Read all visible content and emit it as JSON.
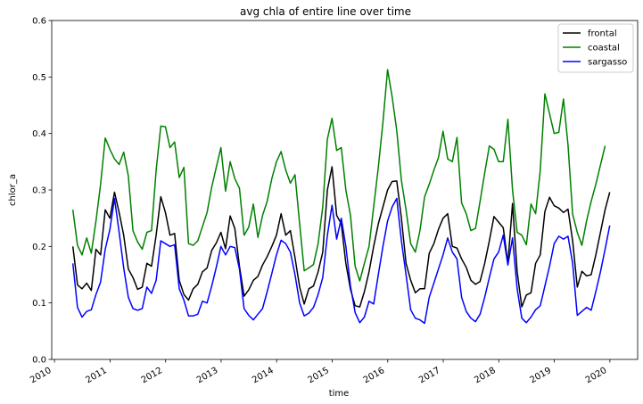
{
  "chart_data": {
    "type": "line",
    "title": "avg chla of entire line over time",
    "xlabel": "time",
    "ylabel": "chlor_a",
    "xlim": [
      2009.95,
      2020.5
    ],
    "ylim": [
      0.0,
      0.6
    ],
    "yticks": [
      0.0,
      0.1,
      0.2,
      0.3,
      0.4,
      0.5,
      0.6
    ],
    "ytick_labels": [
      "0.0",
      "0.1",
      "0.2",
      "0.3",
      "0.4",
      "0.5",
      "0.6"
    ],
    "xticks": [
      2010,
      2011,
      2012,
      2013,
      2014,
      2015,
      2016,
      2017,
      2018,
      2019,
      2020
    ],
    "xtick_labels": [
      "2010",
      "2011",
      "2012",
      "2013",
      "2014",
      "2015",
      "2016",
      "2017",
      "2018",
      "2019",
      "2020"
    ],
    "grid": false,
    "legend_position": "top-right",
    "start_year": 2010.33,
    "step_months": 1,
    "series": [
      {
        "name": "frontal",
        "color": "#000000",
        "values": [
          0.2,
          0.132,
          0.125,
          0.135,
          0.122,
          0.195,
          0.185,
          0.265,
          0.25,
          0.296,
          0.26,
          0.22,
          0.16,
          0.145,
          0.124,
          0.128,
          0.17,
          0.165,
          0.22,
          0.288,
          0.26,
          0.22,
          0.223,
          0.14,
          0.115,
          0.105,
          0.125,
          0.133,
          0.155,
          0.162,
          0.193,
          0.206,
          0.225,
          0.196,
          0.254,
          0.232,
          0.165,
          0.112,
          0.123,
          0.14,
          0.147,
          0.167,
          0.182,
          0.2,
          0.22,
          0.258,
          0.22,
          0.228,
          0.18,
          0.128,
          0.098,
          0.125,
          0.13,
          0.155,
          0.19,
          0.3,
          0.341,
          0.255,
          0.24,
          0.17,
          0.124,
          0.095,
          0.093,
          0.12,
          0.155,
          0.2,
          0.24,
          0.27,
          0.3,
          0.315,
          0.316,
          0.25,
          0.17,
          0.14,
          0.118,
          0.125,
          0.125,
          0.188,
          0.205,
          0.23,
          0.25,
          0.258,
          0.2,
          0.197,
          0.178,
          0.163,
          0.14,
          0.133,
          0.138,
          0.17,
          0.21,
          0.253,
          0.243,
          0.233,
          0.17,
          0.276,
          0.155,
          0.093,
          0.114,
          0.118,
          0.17,
          0.185,
          0.262,
          0.287,
          0.272,
          0.268,
          0.26,
          0.266,
          0.21,
          0.128,
          0.156,
          0.148,
          0.15,
          0.185,
          0.225,
          0.265,
          0.296
        ]
      },
      {
        "name": "coastal",
        "color": "#008000",
        "values": [
          0.265,
          0.202,
          0.185,
          0.215,
          0.188,
          0.245,
          0.31,
          0.392,
          0.372,
          0.355,
          0.345,
          0.367,
          0.325,
          0.228,
          0.208,
          0.195,
          0.225,
          0.228,
          0.335,
          0.413,
          0.412,
          0.375,
          0.385,
          0.322,
          0.34,
          0.205,
          0.202,
          0.21,
          0.235,
          0.26,
          0.305,
          0.34,
          0.375,
          0.298,
          0.35,
          0.32,
          0.303,
          0.22,
          0.234,
          0.275,
          0.216,
          0.255,
          0.28,
          0.32,
          0.35,
          0.368,
          0.335,
          0.312,
          0.327,
          0.24,
          0.157,
          0.162,
          0.168,
          0.205,
          0.27,
          0.39,
          0.427,
          0.37,
          0.375,
          0.3,
          0.255,
          0.165,
          0.139,
          0.17,
          0.2,
          0.27,
          0.34,
          0.42,
          0.513,
          0.465,
          0.405,
          0.317,
          0.265,
          0.205,
          0.19,
          0.228,
          0.288,
          0.31,
          0.335,
          0.357,
          0.404,
          0.355,
          0.35,
          0.393,
          0.277,
          0.258,
          0.228,
          0.232,
          0.28,
          0.33,
          0.378,
          0.372,
          0.35,
          0.35,
          0.425,
          0.3,
          0.225,
          0.22,
          0.203,
          0.275,
          0.258,
          0.335,
          0.47,
          0.435,
          0.4,
          0.402,
          0.461,
          0.38,
          0.257,
          0.225,
          0.202,
          0.245,
          0.28,
          0.31,
          0.344,
          0.378
        ]
      },
      {
        "name": "sargasso",
        "color": "#0000ff",
        "values": [
          0.17,
          0.092,
          0.075,
          0.085,
          0.088,
          0.115,
          0.137,
          0.195,
          0.23,
          0.285,
          0.225,
          0.162,
          0.11,
          0.09,
          0.087,
          0.09,
          0.128,
          0.117,
          0.14,
          0.21,
          0.205,
          0.2,
          0.203,
          0.125,
          0.105,
          0.077,
          0.077,
          0.08,
          0.103,
          0.1,
          0.13,
          0.163,
          0.2,
          0.185,
          0.2,
          0.198,
          0.16,
          0.09,
          0.078,
          0.07,
          0.08,
          0.09,
          0.12,
          0.152,
          0.185,
          0.211,
          0.205,
          0.19,
          0.15,
          0.1,
          0.077,
          0.082,
          0.092,
          0.115,
          0.145,
          0.22,
          0.273,
          0.213,
          0.25,
          0.2,
          0.13,
          0.083,
          0.065,
          0.075,
          0.103,
          0.098,
          0.15,
          0.2,
          0.245,
          0.27,
          0.285,
          0.21,
          0.15,
          0.088,
          0.073,
          0.07,
          0.064,
          0.11,
          0.135,
          0.16,
          0.185,
          0.215,
          0.19,
          0.178,
          0.11,
          0.085,
          0.073,
          0.067,
          0.08,
          0.11,
          0.145,
          0.178,
          0.19,
          0.22,
          0.167,
          0.215,
          0.125,
          0.073,
          0.065,
          0.075,
          0.088,
          0.095,
          0.13,
          0.165,
          0.205,
          0.218,
          0.213,
          0.218,
          0.17,
          0.078,
          0.085,
          0.092,
          0.087,
          0.12,
          0.155,
          0.195,
          0.237
        ]
      }
    ]
  }
}
